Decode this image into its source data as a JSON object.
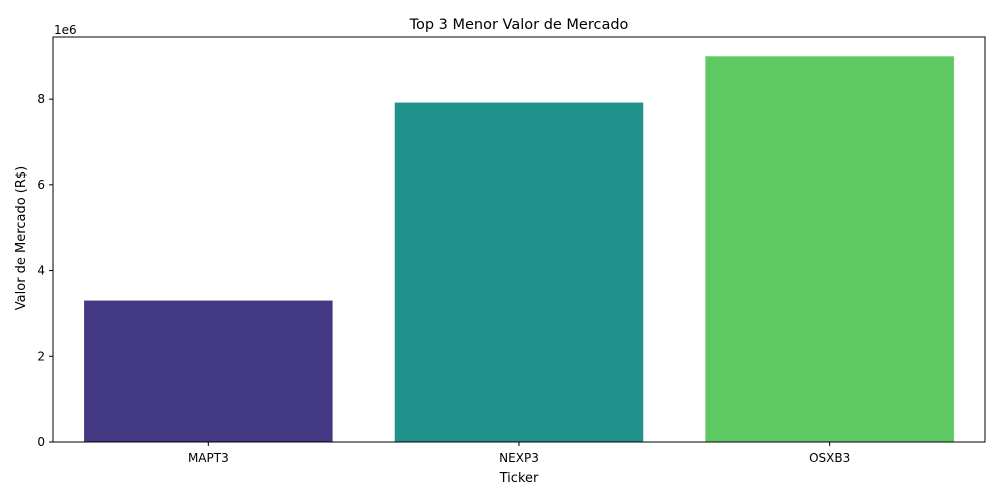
{
  "chart_data": {
    "type": "bar",
    "title": "Top 3 Menor Valor de Mercado",
    "xlabel": "Ticker",
    "ylabel": "Valor de Mercado (R$)",
    "offset_label": "1e6",
    "categories": [
      "MAPT3",
      "NEXP3",
      "OSXB3"
    ],
    "values": [
      3300000,
      7920000,
      9000000
    ],
    "colors": [
      "#443983",
      "#21918c",
      "#5ec962"
    ],
    "ylim": [
      0,
      9450000
    ],
    "yticks": [
      0,
      2000000,
      4000000,
      6000000,
      8000000
    ],
    "ytick_labels": [
      "0",
      "2",
      "4",
      "6",
      "8"
    ],
    "grid": false,
    "legend": "none"
  }
}
